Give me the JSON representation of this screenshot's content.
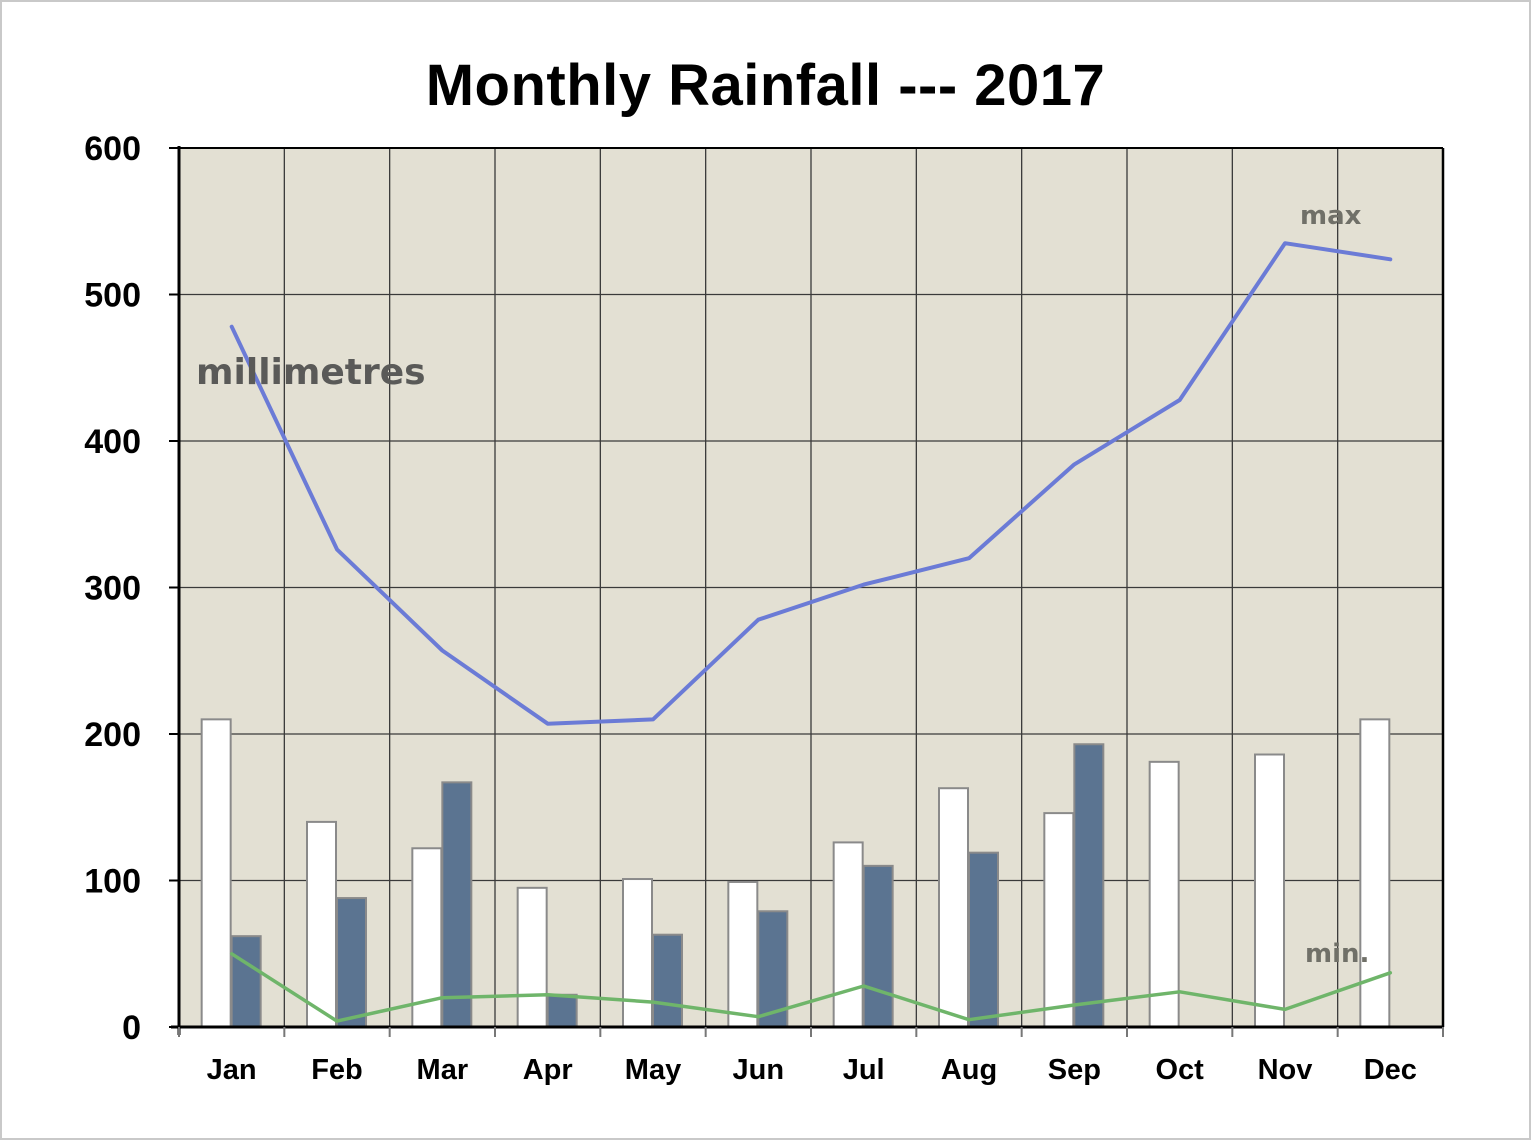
{
  "chart_data": {
    "type": "bar",
    "title": "Monthly Rainfall --- 2017",
    "xlabel": "",
    "ylabel": "",
    "categories": [
      "Jan",
      "Feb",
      "Mar",
      "Apr",
      "May",
      "Jun",
      "Jul",
      "Aug",
      "Sep",
      "Oct",
      "Nov",
      "Dec"
    ],
    "ylim": [
      0,
      600
    ],
    "yticks": [
      0,
      100,
      200,
      300,
      400,
      500,
      600
    ],
    "grid": true,
    "legend": "none",
    "annotations": {
      "units": "millimetres",
      "max_label": "max",
      "min_label": "min."
    },
    "series": [
      {
        "kind": "bar",
        "color": "#ffffff",
        "values": [
          210,
          140,
          122,
          95,
          101,
          99,
          126,
          163,
          146,
          181,
          186,
          210
        ]
      },
      {
        "kind": "bar",
        "color": "#5b7491",
        "values": [
          62,
          88,
          167,
          22,
          63,
          79,
          110,
          119,
          193,
          0,
          0,
          0
        ]
      },
      {
        "kind": "line",
        "label": "max",
        "color": "#6b7bd6",
        "values": [
          478,
          326,
          257,
          207,
          210,
          278,
          302,
          320,
          384,
          428,
          535,
          524
        ]
      },
      {
        "kind": "line",
        "label": "min.",
        "color": "#6fb56a",
        "values": [
          50,
          4,
          20,
          22,
          17,
          7,
          28,
          5,
          15,
          24,
          12,
          37
        ]
      }
    ]
  }
}
